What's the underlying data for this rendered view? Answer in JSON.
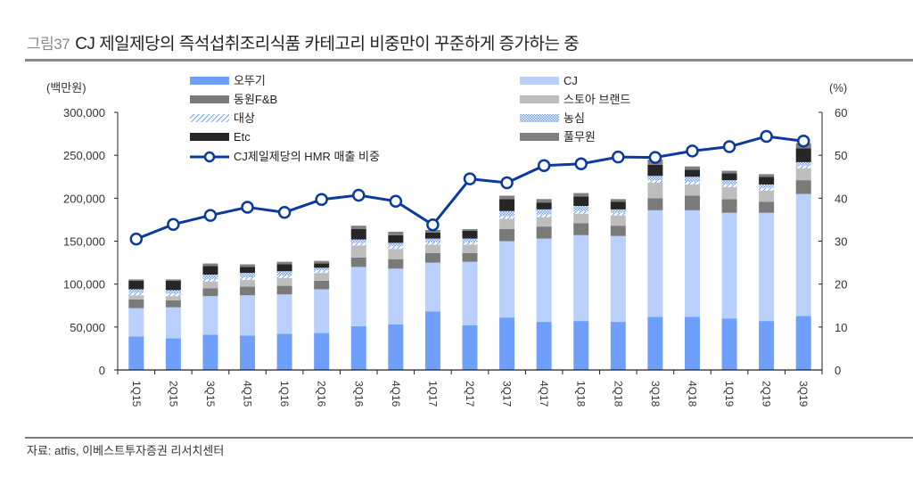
{
  "header": {
    "figure_number": "그림37",
    "title": "CJ 제일제당의 즉석섭취조리식품 카테고리 비중만이 꾸준하게 증가하는 중"
  },
  "footer": {
    "source": "자료: atfis, 이베스트투자증권 리서치센터"
  },
  "colors": {
    "ottogi": "#6e9ffa",
    "cj": "#b8d0fb",
    "dongwon": "#7a7a7a",
    "store_brand": "#bdbdbd",
    "daesang": "#6e9ffa",
    "nongshim": "#6e9ffa",
    "etc": "#262626",
    "pulmuone": "#808080",
    "line": "#0b3a9e"
  },
  "chart_data": {
    "type": "bar",
    "stacked": true,
    "title": "CJ 제일제당의 즉석섭취조리식품 카테고리 비중만이 꾸준하게 증가하는 중",
    "xlabel": "",
    "ylabel": "(백만원)",
    "y2label": "(%)",
    "ylim": [
      0,
      300000
    ],
    "y2lim": [
      0,
      60
    ],
    "yticks": [
      "0",
      "50,000",
      "100,000",
      "150,000",
      "200,000",
      "250,000",
      "300,000"
    ],
    "y2ticks": [
      "0",
      "10",
      "20",
      "30",
      "40",
      "50",
      "60"
    ],
    "grid": false,
    "legend_position": "top",
    "categories": [
      "1Q15",
      "2Q15",
      "3Q15",
      "4Q15",
      "1Q16",
      "2Q16",
      "3Q16",
      "4Q16",
      "1Q17",
      "2Q17",
      "3Q17",
      "4Q17",
      "1Q18",
      "2Q18",
      "3Q18",
      "4Q18",
      "1Q19",
      "2Q19",
      "3Q19"
    ],
    "series": [
      {
        "key": "ottogi",
        "name": "오뚜기",
        "pattern": "solid",
        "values": [
          39000,
          37000,
          41000,
          40000,
          42000,
          43000,
          51000,
          53000,
          68000,
          52000,
          61000,
          56000,
          57000,
          56000,
          62000,
          62000,
          60000,
          57000,
          63000
        ]
      },
      {
        "key": "cj",
        "name": "CJ",
        "pattern": "solid",
        "values": [
          33000,
          36000,
          45000,
          47000,
          46000,
          51000,
          69000,
          65000,
          57000,
          74000,
          89000,
          97000,
          100000,
          100000,
          124000,
          124000,
          123000,
          126000,
          142000
        ]
      },
      {
        "key": "dongwon",
        "name": "동원F&B",
        "pattern": "solid",
        "values": [
          10000,
          8000,
          9000,
          10000,
          10000,
          10000,
          11000,
          11000,
          11000,
          10000,
          14000,
          14000,
          14000,
          12000,
          14000,
          17000,
          16000,
          13000,
          16000
        ]
      },
      {
        "key": "store_brand",
        "name": "스토아 브랜드",
        "pattern": "solid",
        "values": [
          5000,
          5000,
          8000,
          8000,
          9000,
          9000,
          14000,
          12000,
          10000,
          10000,
          12000,
          11000,
          11000,
          12000,
          18000,
          13000,
          14000,
          13000,
          14000
        ]
      },
      {
        "key": "daesang",
        "name": "대상",
        "pattern": "hatch",
        "values": [
          3000,
          3000,
          3000,
          3000,
          3000,
          3000,
          3000,
          3000,
          3000,
          3000,
          3000,
          3000,
          3000,
          3000,
          3000,
          3000,
          3000,
          3000,
          3000
        ]
      },
      {
        "key": "nongshim",
        "name": "농심",
        "pattern": "dots",
        "values": [
          4000,
          4000,
          5000,
          5000,
          5000,
          3000,
          4000,
          4000,
          4000,
          4000,
          6000,
          6000,
          6000,
          4000,
          5000,
          6000,
          5000,
          4000,
          4000
        ]
      },
      {
        "key": "etc",
        "name": "Etc",
        "pattern": "solid",
        "values": [
          10000,
          11000,
          10000,
          7000,
          8000,
          5000,
          12000,
          9000,
          7000,
          9000,
          14000,
          8000,
          11000,
          9000,
          13000,
          8000,
          8000,
          9000,
          16000
        ]
      },
      {
        "key": "pulmuone",
        "name": "풀무원",
        "pattern": "solid",
        "values": [
          1500,
          1500,
          3000,
          3000,
          3000,
          3000,
          4000,
          4000,
          3000,
          2000,
          4000,
          4000,
          4000,
          3000,
          6000,
          4000,
          3000,
          3000,
          6000
        ]
      }
    ],
    "line": {
      "name": "CJ제일제당의 HMR 매출 비중",
      "axis": "right",
      "values": [
        30.5,
        33.9,
        36.0,
        37.9,
        36.7,
        39.7,
        40.7,
        39.3,
        33.8,
        44.5,
        43.6,
        47.6,
        48.0,
        49.6,
        49.5,
        51.0,
        52.0,
        54.4,
        53.3
      ]
    },
    "legend": {
      "left": [
        "오뚜기",
        "동원F&B",
        "대상",
        "Etc",
        "CJ제일제당의 HMR 매출 비중"
      ],
      "right": [
        "CJ",
        "스토아 브랜드",
        "농심",
        "풀무원"
      ]
    }
  }
}
